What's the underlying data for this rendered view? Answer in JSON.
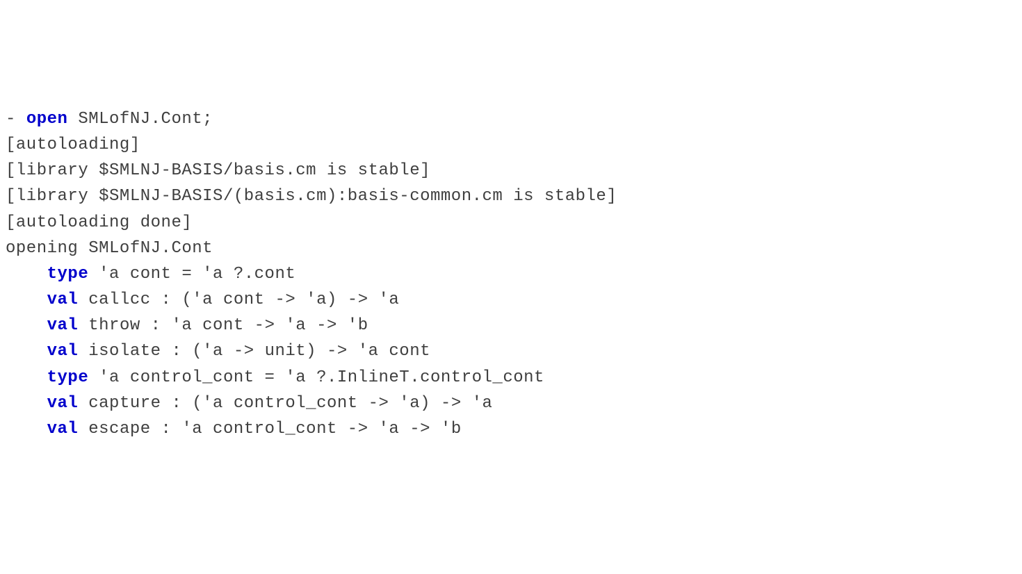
{
  "colors": {
    "background": "#ffffff",
    "text": "#3f3f3f",
    "keyword": "#0000cc"
  },
  "typography": {
    "font_family": "Courier New, monospace",
    "font_size_pt": 18,
    "line_height": 1.55,
    "keyword_weight": "bold"
  },
  "l0_prefix": "- ",
  "l0_kw": "open",
  "l0_rest": " SMLofNJ.Cont;",
  "l1": "[autoloading]",
  "l2": "[library $SMLNJ-BASIS/basis.cm is stable]",
  "l3": "[library $SMLNJ-BASIS/(basis.cm):basis-common.cm is stable]",
  "l4": "[autoloading done]",
  "l5": "opening SMLofNJ.Cont",
  "indent": "    ",
  "l6_kw": "type",
  "l6_rest": " 'a cont = 'a ?.cont",
  "l7_kw": "val",
  "l7_rest": " callcc : ('a cont -> 'a) -> 'a",
  "l8_kw": "val",
  "l8_rest": " throw : 'a cont -> 'a -> 'b",
  "l9_kw": "val",
  "l9_rest": " isolate : ('a -> unit) -> 'a cont",
  "l10_kw": "type",
  "l10_rest": " 'a control_cont = 'a ?.InlineT.control_cont",
  "l11_kw": "val",
  "l11_rest": " capture : ('a control_cont -> 'a) -> 'a",
  "l12_kw": "val",
  "l12_rest": " escape : 'a control_cont -> 'a -> 'b"
}
